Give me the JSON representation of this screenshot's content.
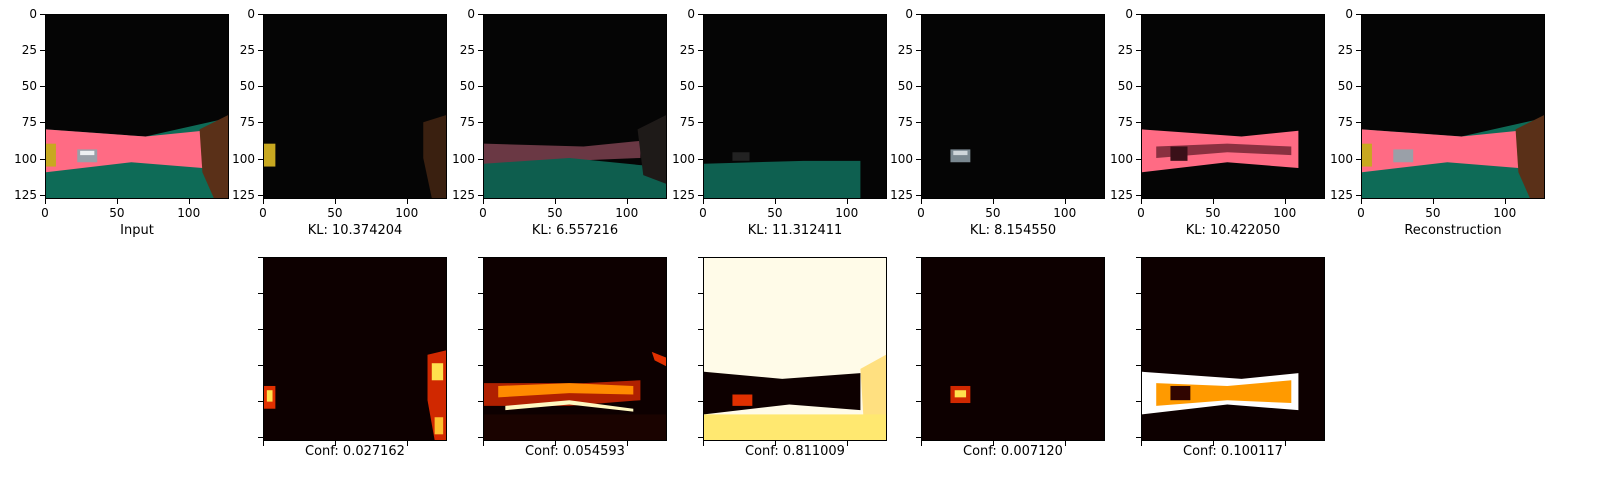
{
  "figure": {
    "top_row": [
      {
        "caption": "Input",
        "kind": "input"
      },
      {
        "caption": "KL: 10.374204",
        "kind": "decode1"
      },
      {
        "caption": "KL: 6.557216",
        "kind": "decode2"
      },
      {
        "caption": "KL: 11.312411",
        "kind": "decode3"
      },
      {
        "caption": "KL: 8.154550",
        "kind": "decode4"
      },
      {
        "caption": "KL: 10.422050",
        "kind": "decode5"
      },
      {
        "caption": "Reconstruction",
        "kind": "recon"
      }
    ],
    "bottom_row": [
      {
        "caption": "Conf: 0.027162",
        "kind": "conf1"
      },
      {
        "caption": "Conf: 0.054593",
        "kind": "conf2"
      },
      {
        "caption": "Conf: 0.811009",
        "kind": "conf3"
      },
      {
        "caption": "Conf: 0.007120",
        "kind": "conf4"
      },
      {
        "caption": "Conf: 0.100117",
        "kind": "conf5"
      }
    ],
    "x_ticks": [
      "0",
      "50",
      "100"
    ],
    "y_ticks": [
      "0",
      "25",
      "50",
      "75",
      "100",
      "125"
    ]
  },
  "colors": {
    "road": "#ff6b84",
    "grass": "#0e6b57",
    "yellow": "#c8a820",
    "brown": "#5a3018",
    "heat_dark": "#0d0000",
    "heat_mid": "#e03000",
    "heat_hot": "#ffe14d"
  }
}
